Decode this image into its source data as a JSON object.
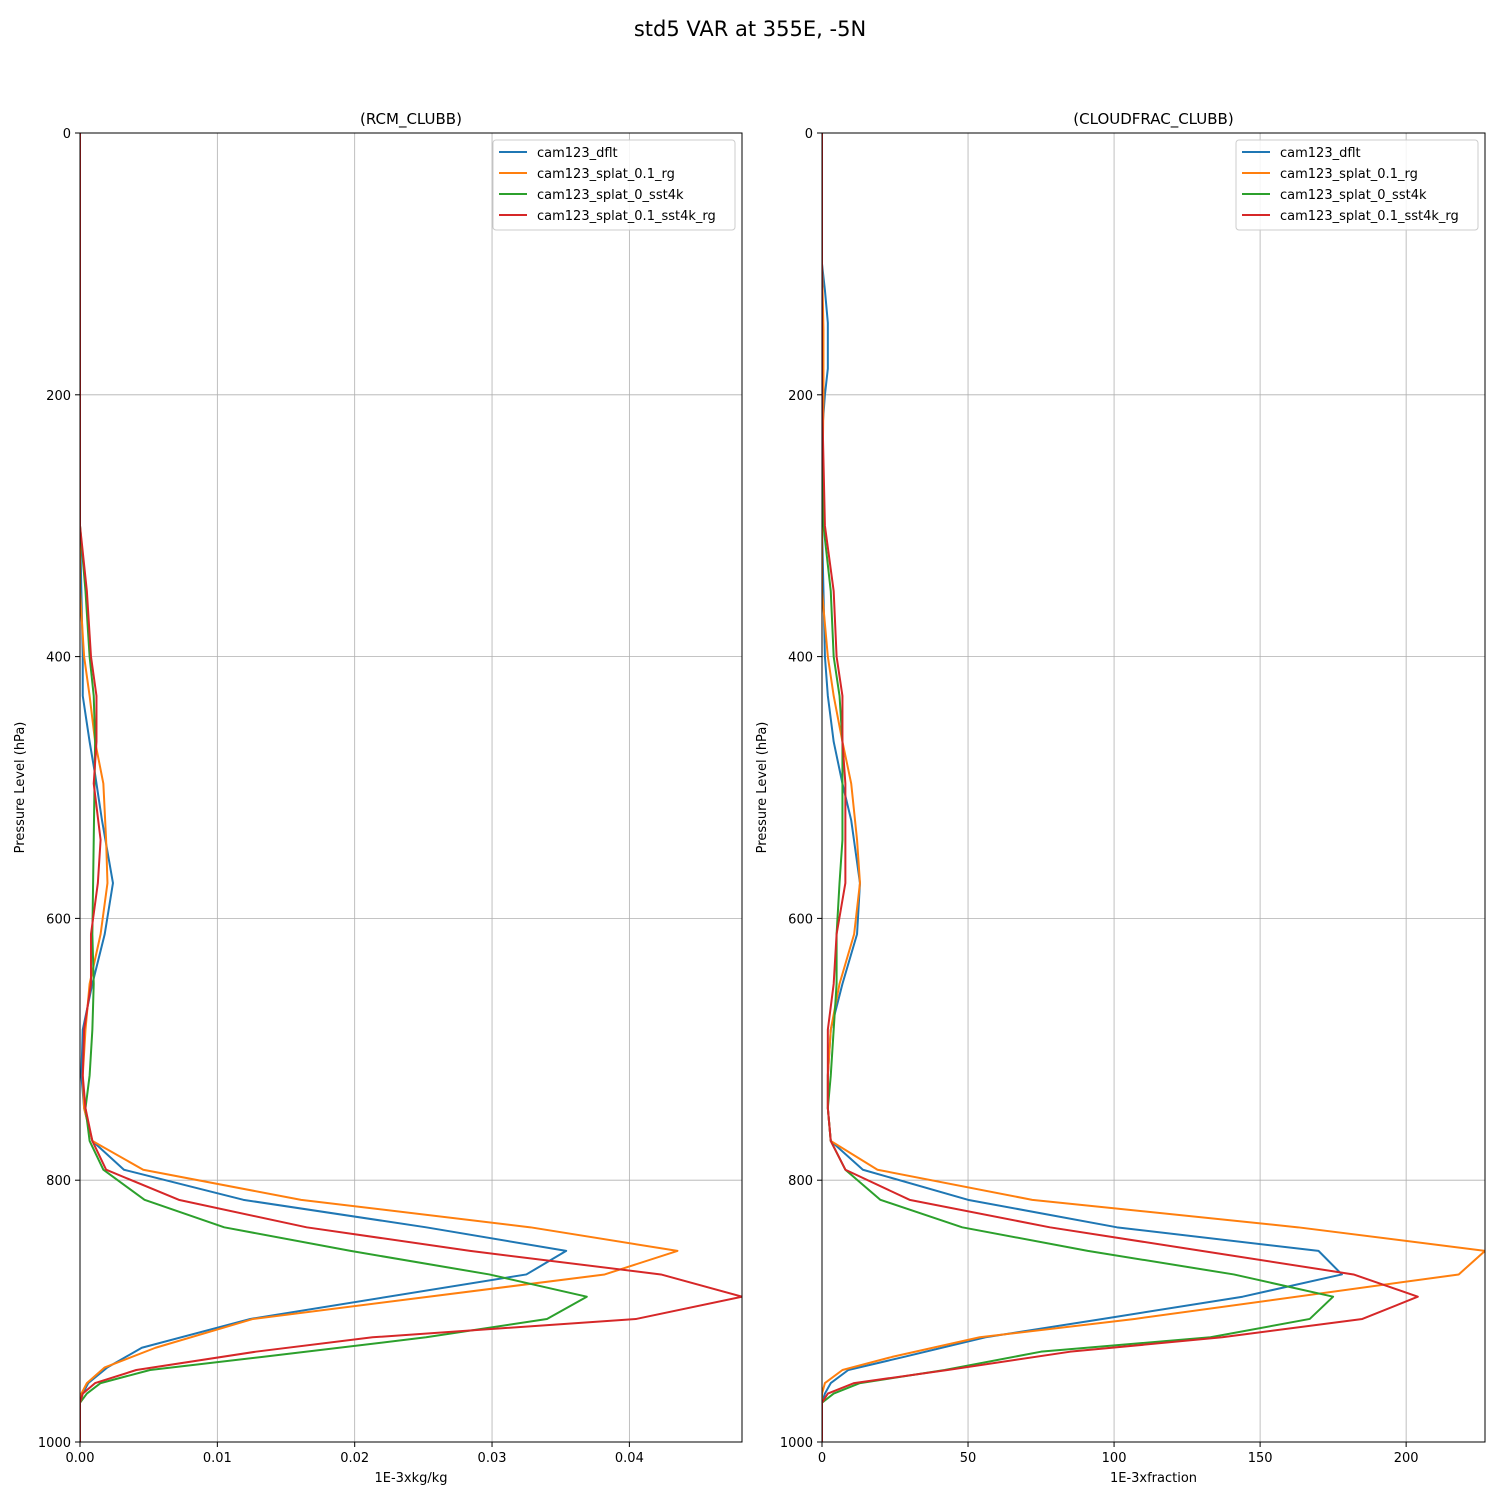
{
  "figure": {
    "suptitle": "std5 VAR at 355E, -5N"
  },
  "chart_data": [
    {
      "type": "line",
      "title": "(RCM_CLUBB)",
      "xlabel": "1E-3xkg/kg",
      "ylabel": "Pressure Level (hPa)",
      "xlim": [
        0,
        0.0482
      ],
      "ylim": [
        1000,
        0
      ],
      "y_inverted": true,
      "grid": true,
      "legend_position": "upper right",
      "xticks": [
        0,
        0.01,
        0.02,
        0.03,
        0.04
      ],
      "xtick_labels": [
        "0.00",
        "0.01",
        "0.02",
        "0.03",
        "0.04"
      ],
      "yticks": [
        0,
        200,
        400,
        600,
        800,
        1000
      ],
      "ytick_labels": [
        "0",
        "200",
        "400",
        "600",
        "800",
        "1000"
      ],
      "series": [
        {
          "name": "cam123_dflt",
          "color": "#1f77b4",
          "points": [
            [
              0,
              0
            ],
            [
              0,
              150
            ],
            [
              0,
              200
            ],
            [
              0,
              300
            ],
            [
              0.0001,
              350
            ],
            [
              0.0002,
              400
            ],
            [
              0.0002,
              430
            ],
            [
              0.0007,
              465
            ],
            [
              0.0011,
              490
            ],
            [
              0.0016,
              525
            ],
            [
              0.0024,
              573
            ],
            [
              0.0018,
              612
            ],
            [
              0.0009,
              650
            ],
            [
              0.0002,
              685
            ],
            [
              0.0001,
              720
            ],
            [
              0.0003,
              745
            ],
            [
              0.0009,
              770
            ],
            [
              0.0032,
              792
            ],
            [
              0.0119,
              815
            ],
            [
              0.0252,
              836
            ],
            [
              0.0354,
              854
            ],
            [
              0.0325,
              872
            ],
            [
              0.0124,
              906
            ],
            [
              0.0045,
              928
            ],
            [
              0.002,
              943
            ],
            [
              0.0006,
              955
            ],
            [
              0.0002,
              963
            ],
            [
              0,
              970
            ],
            [
              0,
              1000
            ]
          ]
        },
        {
          "name": "cam123_splat_0.1_rg",
          "color": "#ff7f0e",
          "points": [
            [
              0,
              0
            ],
            [
              0,
              150
            ],
            [
              0,
              200
            ],
            [
              0,
              300
            ],
            [
              0,
              350
            ],
            [
              0.0003,
              400
            ],
            [
              0.0007,
              430
            ],
            [
              0.0011,
              465
            ],
            [
              0.0017,
              497
            ],
            [
              0.0019,
              540
            ],
            [
              0.002,
              573
            ],
            [
              0.0015,
              612
            ],
            [
              0.0007,
              650
            ],
            [
              0.0004,
              685
            ],
            [
              0.0002,
              720
            ],
            [
              0.0003,
              745
            ],
            [
              0.0009,
              770
            ],
            [
              0.0046,
              792
            ],
            [
              0.0161,
              815
            ],
            [
              0.0328,
              836
            ],
            [
              0.0435,
              854
            ],
            [
              0.0382,
              872
            ],
            [
              0.0126,
              906
            ],
            [
              0.0055,
              928
            ],
            [
              0.0018,
              943
            ],
            [
              0.0005,
              955
            ],
            [
              0.0001,
              963
            ],
            [
              0,
              970
            ],
            [
              0,
              1000
            ]
          ]
        },
        {
          "name": "cam123_splat_0_sst4k",
          "color": "#2ca02c",
          "points": [
            [
              0,
              0
            ],
            [
              0,
              150
            ],
            [
              0,
              200
            ],
            [
              0,
              300
            ],
            [
              0.0004,
              350
            ],
            [
              0.0007,
              400
            ],
            [
              0.001,
              430
            ],
            [
              0.0011,
              465
            ],
            [
              0.001,
              540
            ],
            [
              0.0009,
              612
            ],
            [
              0.001,
              650
            ],
            [
              0.0009,
              685
            ],
            [
              0.0007,
              720
            ],
            [
              0.0004,
              745
            ],
            [
              0.0007,
              770
            ],
            [
              0.0017,
              792
            ],
            [
              0.0047,
              815
            ],
            [
              0.0105,
              836
            ],
            [
              0.0197,
              854
            ],
            [
              0.0298,
              872
            ],
            [
              0.0369,
              889
            ],
            [
              0.034,
              906
            ],
            [
              0.0252,
              920
            ],
            [
              0.0133,
              935
            ],
            [
              0.0051,
              945
            ],
            [
              0.0015,
              955
            ],
            [
              0.0005,
              963
            ],
            [
              0,
              970
            ],
            [
              0,
              1000
            ]
          ]
        },
        {
          "name": "cam123_splat_0.1_sst4k_rg",
          "color": "#d62728",
          "points": [
            [
              0,
              0
            ],
            [
              0,
              150
            ],
            [
              0,
              200
            ],
            [
              0,
              300
            ],
            [
              0.0005,
              350
            ],
            [
              0.0008,
              400
            ],
            [
              0.0012,
              430
            ],
            [
              0.0012,
              465
            ],
            [
              0.001,
              497
            ],
            [
              0.0015,
              540
            ],
            [
              0.0013,
              573
            ],
            [
              0.0008,
              612
            ],
            [
              0.0008,
              650
            ],
            [
              0.0003,
              685
            ],
            [
              0.0002,
              720
            ],
            [
              0.0004,
              745
            ],
            [
              0.0009,
              770
            ],
            [
              0.0019,
              792
            ],
            [
              0.0072,
              815
            ],
            [
              0.0165,
              836
            ],
            [
              0.0284,
              854
            ],
            [
              0.0423,
              872
            ],
            [
              0.0482,
              889
            ],
            [
              0.0405,
              906
            ],
            [
              0.0213,
              920
            ],
            [
              0.0128,
              931
            ],
            [
              0.0041,
              945
            ],
            [
              0.0011,
              955
            ],
            [
              0.0002,
              963
            ],
            [
              0,
              970
            ],
            [
              0,
              1000
            ]
          ]
        }
      ]
    },
    {
      "type": "line",
      "title": "(CLOUDFRAC_CLUBB)",
      "xlabel": "1E-3xfraction",
      "ylabel": "Pressure Level (hPa)",
      "xlim": [
        0,
        227
      ],
      "ylim": [
        1000,
        0
      ],
      "y_inverted": true,
      "grid": true,
      "legend_position": "upper right",
      "xticks": [
        0,
        50,
        100,
        150,
        200
      ],
      "xtick_labels": [
        "0",
        "50",
        "100",
        "150",
        "200"
      ],
      "yticks": [
        0,
        200,
        400,
        600,
        800,
        1000
      ],
      "ytick_labels": [
        "0",
        "200",
        "400",
        "600",
        "800",
        "1000"
      ],
      "series": [
        {
          "name": "cam123_dflt",
          "color": "#1f77b4",
          "points": [
            [
              0,
              0
            ],
            [
              0,
              100
            ],
            [
              1,
              120
            ],
            [
              2,
              145
            ],
            [
              2,
              180
            ],
            [
              1,
              200
            ],
            [
              0,
              230
            ],
            [
              0,
              300
            ],
            [
              0.5,
              350
            ],
            [
              1,
              400
            ],
            [
              2,
              430
            ],
            [
              4,
              465
            ],
            [
              7,
              497
            ],
            [
              10,
              525
            ],
            [
              13,
              573
            ],
            [
              12,
              612
            ],
            [
              7,
              650
            ],
            [
              3,
              685
            ],
            [
              2,
              720
            ],
            [
              2,
              745
            ],
            [
              3,
              770
            ],
            [
              14,
              792
            ],
            [
              50,
              815
            ],
            [
              101,
              836
            ],
            [
              170,
              854
            ],
            [
              178,
              872
            ],
            [
              144,
              889
            ],
            [
              96,
              906
            ],
            [
              56,
              920
            ],
            [
              28,
              935
            ],
            [
              9,
              945
            ],
            [
              3,
              955
            ],
            [
              1,
              963
            ],
            [
              0,
              970
            ],
            [
              0,
              1000
            ]
          ]
        },
        {
          "name": "cam123_splat_0.1_rg",
          "color": "#ff7f0e",
          "points": [
            [
              0,
              0
            ],
            [
              0,
              100
            ],
            [
              0.5,
              150
            ],
            [
              0.5,
              200
            ],
            [
              0,
              300
            ],
            [
              0,
              350
            ],
            [
              2,
              400
            ],
            [
              4,
              430
            ],
            [
              7,
              465
            ],
            [
              10,
              497
            ],
            [
              12,
              540
            ],
            [
              13,
              573
            ],
            [
              11,
              612
            ],
            [
              6,
              650
            ],
            [
              3,
              685
            ],
            [
              2,
              720
            ],
            [
              2,
              745
            ],
            [
              3,
              770
            ],
            [
              19,
              792
            ],
            [
              72,
              815
            ],
            [
              163,
              836
            ],
            [
              227,
              854
            ],
            [
              218,
              872
            ],
            [
              107,
              906
            ],
            [
              54,
              920
            ],
            [
              24,
              935
            ],
            [
              7,
              945
            ],
            [
              1,
              955
            ],
            [
              0,
              963
            ],
            [
              0,
              970
            ],
            [
              0,
              1000
            ]
          ]
        },
        {
          "name": "cam123_splat_0_sst4k",
          "color": "#2ca02c",
          "points": [
            [
              0,
              0
            ],
            [
              0,
              100
            ],
            [
              0,
              200
            ],
            [
              0.5,
              300
            ],
            [
              3,
              350
            ],
            [
              4,
              400
            ],
            [
              6,
              430
            ],
            [
              7,
              465
            ],
            [
              7,
              540
            ],
            [
              6,
              573
            ],
            [
              5,
              612
            ],
            [
              5,
              650
            ],
            [
              4,
              685
            ],
            [
              3,
              720
            ],
            [
              2,
              745
            ],
            [
              3,
              770
            ],
            [
              8,
              792
            ],
            [
              20,
              815
            ],
            [
              48,
              836
            ],
            [
              91,
              854
            ],
            [
              141,
              872
            ],
            [
              175,
              889
            ],
            [
              167,
              906
            ],
            [
              133,
              920
            ],
            [
              75,
              931
            ],
            [
              42,
              945
            ],
            [
              13,
              955
            ],
            [
              4,
              963
            ],
            [
              0,
              970
            ],
            [
              0,
              1000
            ]
          ]
        },
        {
          "name": "cam123_splat_0.1_sst4k_rg",
          "color": "#d62728",
          "points": [
            [
              0,
              0
            ],
            [
              0,
              100
            ],
            [
              0,
              200
            ],
            [
              1,
              300
            ],
            [
              4,
              350
            ],
            [
              5,
              400
            ],
            [
              7,
              430
            ],
            [
              7,
              465
            ],
            [
              8,
              497
            ],
            [
              8,
              540
            ],
            [
              8,
              573
            ],
            [
              5,
              612
            ],
            [
              4,
              650
            ],
            [
              2,
              685
            ],
            [
              2,
              720
            ],
            [
              2,
              745
            ],
            [
              3,
              770
            ],
            [
              8,
              792
            ],
            [
              30,
              815
            ],
            [
              78,
              836
            ],
            [
              130,
              854
            ],
            [
              182,
              872
            ],
            [
              204,
              889
            ],
            [
              185,
              906
            ],
            [
              137,
              920
            ],
            [
              85,
              931
            ],
            [
              43,
              945
            ],
            [
              11,
              955
            ],
            [
              2,
              963
            ],
            [
              0,
              970
            ],
            [
              0,
              1000
            ]
          ]
        }
      ]
    }
  ]
}
